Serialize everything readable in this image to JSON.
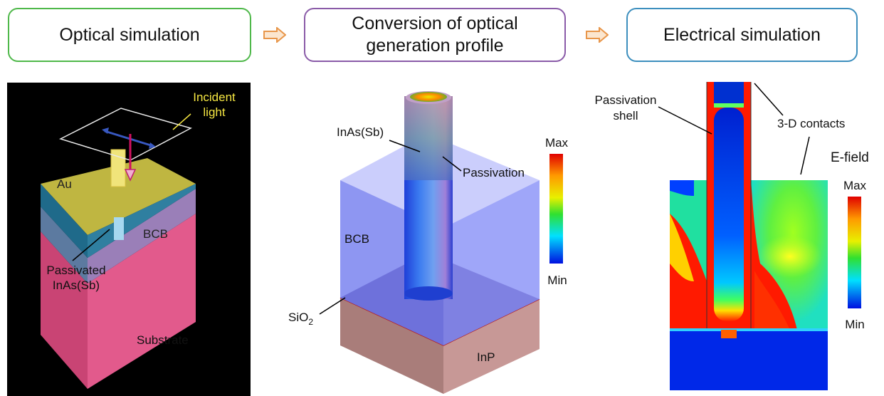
{
  "stages": {
    "optical": "Optical simulation",
    "conversion_line1": "Conversion of optical",
    "conversion_line2": "generation profile",
    "electrical": "Electrical simulation"
  },
  "left_panel": {
    "incident_line1": "Incident",
    "incident_line2": "light",
    "au": "Au",
    "bcb": "BCB",
    "passivated_line1": "Passivated",
    "passivated_line2": "InAs(Sb)",
    "substrate": "Substrate"
  },
  "middle_panel": {
    "inassb": "InAs(Sb)",
    "passivation": "Passivation",
    "bcb": "BCB",
    "sio2_main": "SiO",
    "sio2_sub": "2",
    "inp": "InP",
    "scale_max": "Max",
    "scale_min": "Min"
  },
  "right_panel": {
    "passivation_line1": "Passivation",
    "passivation_line2": "shell",
    "contacts": "3-D contacts",
    "efield": "E-field",
    "scale_max": "Max",
    "scale_min": "Min"
  },
  "colors": {
    "optical_border": "#4fb84a",
    "conversion_border": "#8a5ba8",
    "electrical_border": "#3d8fbe",
    "arrow": "#f0a050",
    "au_label": "#f5e642"
  }
}
